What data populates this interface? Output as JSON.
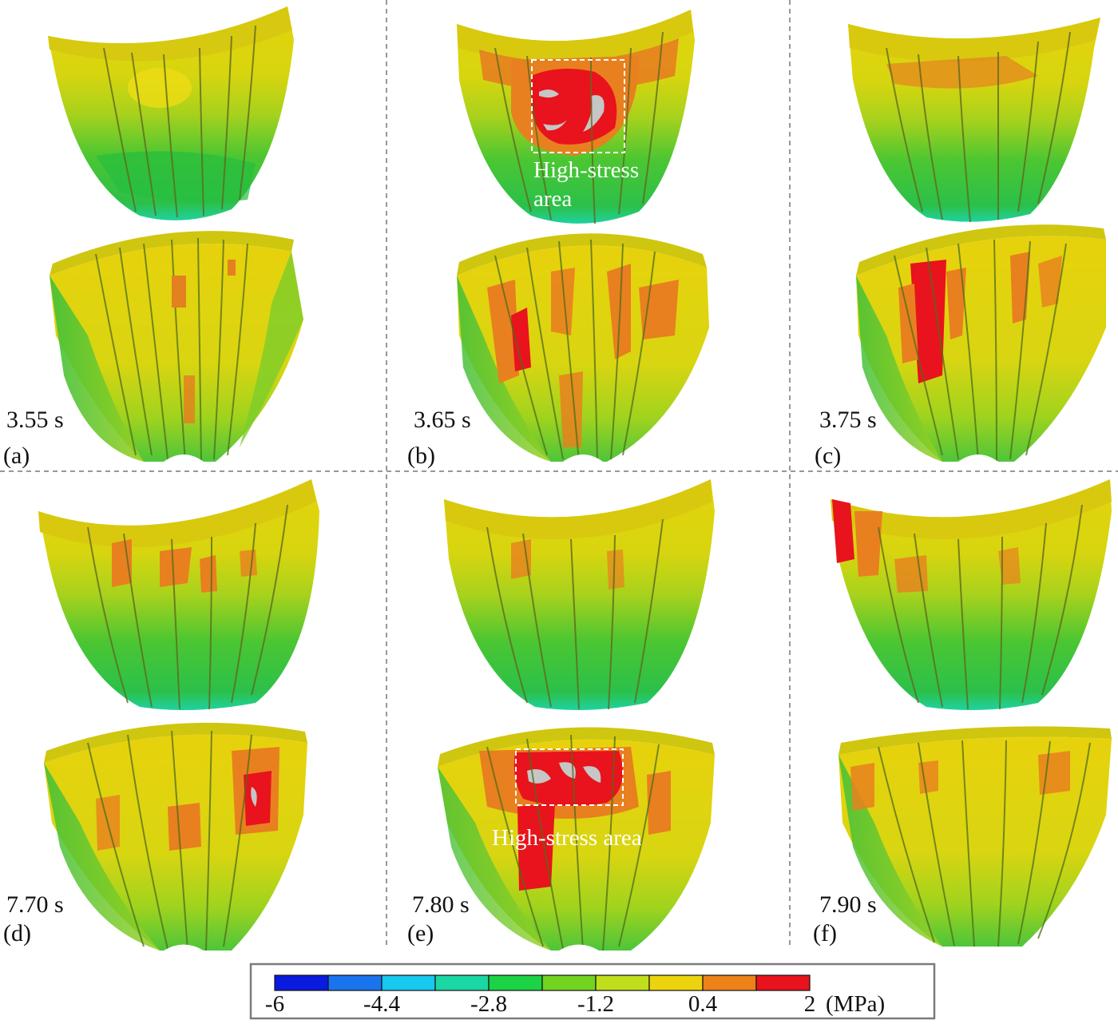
{
  "colors": {
    "ring": "#c9cf10",
    "body": "#e8d00a",
    "yellow": "#e3d60e",
    "orange": "#e8801f",
    "red": "#e8131c",
    "green": "#36c23a",
    "lightgreen": "#8fd02b",
    "cyan": "#1dd6a0",
    "gray": "#c6c6c6",
    "frame": "#7b7b7b"
  },
  "panels": [
    {
      "id": "a",
      "time": "3.55 s",
      "label": "(a)"
    },
    {
      "id": "b",
      "time": "3.65 s",
      "label": "(b)"
    },
    {
      "id": "c",
      "time": "3.75 s",
      "label": "(c)"
    },
    {
      "id": "d",
      "time": "7.70 s",
      "label": "(d)"
    },
    {
      "id": "e",
      "time": "7.80 s",
      "label": "(e)"
    },
    {
      "id": "f",
      "time": "7.90 s",
      "label": "(f)"
    }
  ],
  "annotations": {
    "b_line1": "High-stress",
    "b_line2": "area",
    "e_line1": "High-stress area"
  },
  "colorbar": {
    "unit": "(MPa)",
    "ticks": [
      "-6",
      "-4.4",
      "-2.8",
      "-1.2",
      "0.4",
      "2"
    ],
    "colors": [
      "#0a1be0",
      "#1a74ee",
      "#18c8ee",
      "#1bd7a3",
      "#1cd345",
      "#72d41f",
      "#c0de1c",
      "#ecd30e",
      "#ec8218",
      "#e8131c"
    ]
  }
}
